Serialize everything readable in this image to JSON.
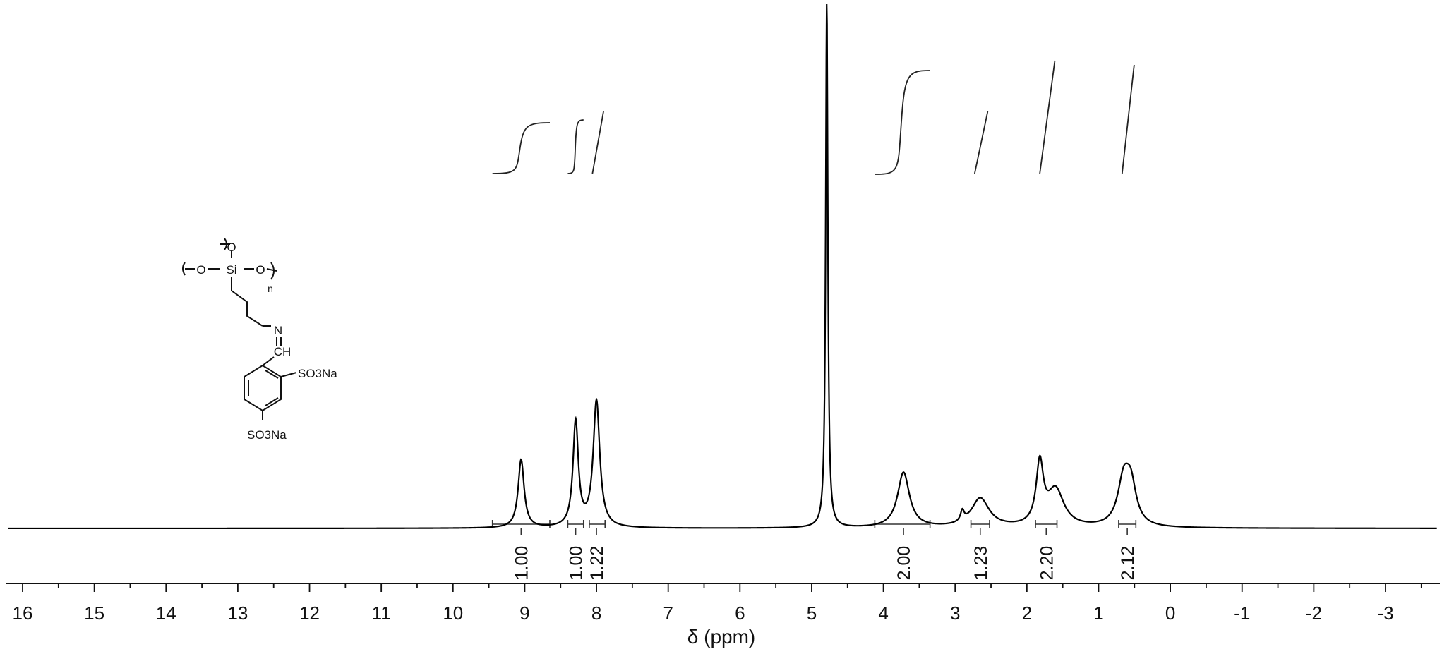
{
  "chart_data": {
    "type": "line",
    "xlabel": "δ (ppm)",
    "x_reversed": true,
    "xlim": [
      16.3,
      -3.8
    ],
    "ticks": [
      16,
      15,
      14,
      13,
      12,
      11,
      10,
      9,
      8,
      7,
      6,
      5,
      4,
      3,
      2,
      1,
      0,
      -1,
      -2,
      -3
    ],
    "tick_labels": [
      "16",
      "15",
      "14",
      "13",
      "12",
      "11",
      "10",
      "9",
      "8",
      "7",
      "6",
      "5",
      "4",
      "3",
      "2",
      "1",
      "0",
      "-1",
      "-2",
      "-3"
    ],
    "ylim": [
      0,
      1.0
    ],
    "baseline": 0,
    "grid": false,
    "series": [
      {
        "color": "#000000",
        "peaks": [
          {
            "center": 9.05,
            "height": 0.13,
            "width": 0.05
          },
          {
            "center": 8.29,
            "height": 0.2,
            "width": 0.045
          },
          {
            "center": 8.0,
            "height": 0.24,
            "width": 0.055
          },
          {
            "center": 4.79,
            "height": 1.0,
            "width": 0.018
          },
          {
            "center": 3.72,
            "height": 0.105,
            "width": 0.1
          },
          {
            "center": 2.9,
            "height": 0.02,
            "width": 0.03
          },
          {
            "center": 2.65,
            "height": 0.055,
            "width": 0.15
          },
          {
            "center": 1.82,
            "height": 0.115,
            "width": 0.06
          },
          {
            "center": 1.6,
            "height": 0.07,
            "width": 0.14
          },
          {
            "center": 0.65,
            "height": 0.085,
            "width": 0.1
          },
          {
            "center": 0.55,
            "height": 0.07,
            "width": 0.09
          }
        ]
      }
    ],
    "integrals": [
      {
        "from": 9.45,
        "to": 8.65,
        "center": 9.05,
        "label": "1.00"
      },
      {
        "from": 8.4,
        "to": 8.18,
        "center": 8.29,
        "label": "1.00"
      },
      {
        "from": 8.1,
        "to": 7.88,
        "center": 8.0,
        "label": "1.22"
      },
      {
        "from": 4.12,
        "to": 3.35,
        "center": 3.72,
        "label": "2.00"
      },
      {
        "from": 2.78,
        "to": 2.52,
        "center": 2.65,
        "label": "1.23"
      },
      {
        "from": 1.88,
        "to": 1.58,
        "center": 1.73,
        "label": "2.20"
      },
      {
        "from": 0.72,
        "to": 0.48,
        "center": 0.6,
        "label": "2.12"
      }
    ]
  },
  "structure": {
    "o_top": "O",
    "o_left": "O",
    "si": "Si",
    "o_right": "O",
    "n_sub": "n",
    "n_imine": "N",
    "ch": "CH",
    "so3na_1": "SO3Na",
    "so3na_2": "SO3Na"
  }
}
